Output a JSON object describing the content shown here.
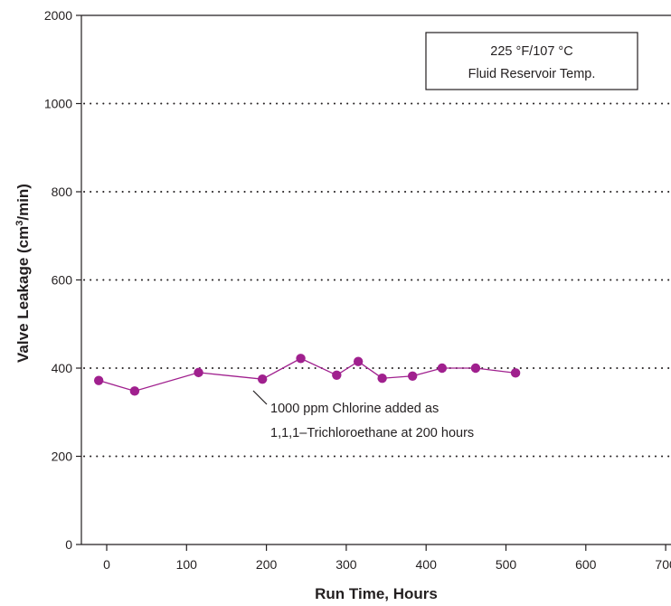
{
  "chart_data": {
    "type": "line",
    "xlabel": "Run Time, Hours",
    "ylabel_prefix": "Valve Leakage (cm",
    "ylabel_sup": "3",
    "ylabel_suffix": "/min)",
    "x_ticks": [
      0,
      100,
      200,
      300,
      400,
      500,
      600,
      700
    ],
    "y_ticks": [
      0,
      200,
      400,
      600,
      800,
      1000,
      2000
    ],
    "xlim": [
      -15,
      715
    ],
    "grid": "dotted horizontal",
    "series": [
      {
        "color": "#a0208e",
        "x": [
          -10,
          35,
          115,
          195,
          243,
          288,
          315,
          345,
          383,
          420,
          462,
          512
        ],
        "y": [
          372,
          348,
          390,
          375,
          422,
          384,
          415,
          377,
          382,
          400,
          400,
          389
        ]
      }
    ],
    "annotations": {
      "temp_box": [
        "225 °F/107 °C",
        "Fluid Reservoir Temp."
      ],
      "chlorine_note": [
        "1000 ppm Chlorine added as",
        "1,1,1–Trichloroethane at 200 hours"
      ]
    }
  }
}
